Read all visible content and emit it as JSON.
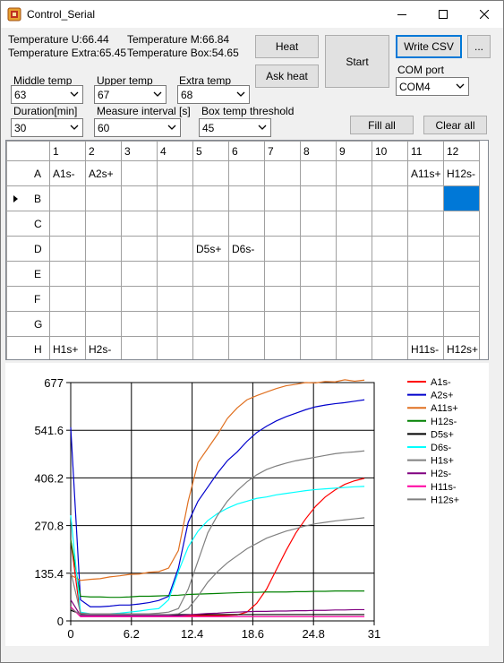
{
  "window": {
    "title": "Control_Serial"
  },
  "status": {
    "temp_u": "Temperature U:66.44",
    "temp_extra": "Temperature Extra:65.45",
    "temp_m": "Temperature M:66.84",
    "temp_box": "Temperature Box:54.65"
  },
  "buttons": {
    "heat": "Heat",
    "ask_heat": "Ask heat",
    "start": "Start",
    "write_csv": "Write CSV",
    "browse": "...",
    "fill_all": "Fill all",
    "clear_all": "Clear all"
  },
  "settings": {
    "middle_temp": {
      "label": "Middle temp",
      "value": "63"
    },
    "upper_temp": {
      "label": "Upper temp",
      "value": "67"
    },
    "extra_temp": {
      "label": "Extra temp",
      "value": "68"
    },
    "duration": {
      "label": "Duration[min]",
      "value": "30"
    },
    "measure_interval": {
      "label": "Measure interval [s]",
      "value": "60"
    },
    "box_temp_threshold": {
      "label": "Box temp threshold",
      "value": "45"
    },
    "com_port": {
      "label": "COM port",
      "value": "COM4"
    }
  },
  "plate": {
    "columns": [
      "1",
      "2",
      "3",
      "4",
      "5",
      "6",
      "7",
      "8",
      "9",
      "10",
      "11",
      "12"
    ],
    "rows": [
      {
        "label": "A",
        "cells": [
          "A1s-",
          "A2s+",
          "",
          "",
          "",
          "",
          "",
          "",
          "",
          "",
          "A11s+",
          "H12s-"
        ]
      },
      {
        "label": "B",
        "cells": [
          "",
          "",
          "",
          "",
          "",
          "",
          "",
          "",
          "",
          "",
          "",
          ""
        ]
      },
      {
        "label": "C",
        "cells": [
          "",
          "",
          "",
          "",
          "",
          "",
          "",
          "",
          "",
          "",
          "",
          ""
        ]
      },
      {
        "label": "D",
        "cells": [
          "",
          "",
          "",
          "",
          "D5s+",
          "D6s-",
          "",
          "",
          "",
          "",
          "",
          ""
        ]
      },
      {
        "label": "E",
        "cells": [
          "",
          "",
          "",
          "",
          "",
          "",
          "",
          "",
          "",
          "",
          "",
          ""
        ]
      },
      {
        "label": "F",
        "cells": [
          "",
          "",
          "",
          "",
          "",
          "",
          "",
          "",
          "",
          "",
          "",
          ""
        ]
      },
      {
        "label": "G",
        "cells": [
          "",
          "",
          "",
          "",
          "",
          "",
          "",
          "",
          "",
          "",
          "",
          ""
        ]
      },
      {
        "label": "H",
        "cells": [
          "H1s+",
          "H2s-",
          "",
          "",
          "",
          "",
          "",
          "",
          "",
          "",
          "H11s-",
          "H12s+"
        ]
      }
    ],
    "selected_row": 1,
    "selected_col": 11,
    "selected_color": "#0078d7"
  },
  "chart_data": {
    "type": "line",
    "xlim": [
      0,
      31
    ],
    "ylim": [
      0,
      677
    ],
    "xticks": [
      "0",
      "6.2",
      "12.4",
      "18.6",
      "24.8",
      "31"
    ],
    "yticks": [
      "0",
      "135.4",
      "270.8",
      "406.2",
      "541.6",
      "677"
    ],
    "grid": true,
    "legend_position": "right",
    "x": [
      0,
      1,
      2,
      3,
      4,
      5,
      6,
      7,
      8,
      9,
      10,
      11,
      12,
      13,
      14,
      15,
      16,
      17,
      18,
      19,
      20,
      21,
      22,
      23,
      24,
      25,
      26,
      27,
      28,
      29,
      30
    ],
    "series": [
      {
        "name": "A1s-",
        "color": "#ff0000",
        "values": [
          230,
          15,
          15,
          15,
          15,
          15,
          15,
          15,
          15,
          15,
          15,
          15,
          15,
          15,
          15,
          15,
          16,
          17,
          25,
          50,
          90,
          145,
          200,
          250,
          290,
          325,
          352,
          372,
          388,
          398,
          405
        ]
      },
      {
        "name": "A2s+",
        "color": "#0000cc",
        "values": [
          550,
          60,
          40,
          40,
          42,
          45,
          45,
          48,
          52,
          58,
          70,
          150,
          280,
          340,
          380,
          420,
          455,
          480,
          510,
          535,
          553,
          568,
          580,
          590,
          600,
          608,
          613,
          617,
          620,
          624,
          628
        ]
      },
      {
        "name": "A11s+",
        "color": "#e07020",
        "values": [
          130,
          115,
          118,
          120,
          125,
          128,
          132,
          133,
          138,
          140,
          150,
          200,
          340,
          450,
          490,
          530,
          575,
          605,
          628,
          640,
          650,
          660,
          668,
          672,
          677,
          676,
          680,
          679,
          685,
          681,
          684
        ]
      },
      {
        "name": "H12s-",
        "color": "#008000",
        "values": [
          230,
          70,
          68,
          68,
          67,
          67,
          68,
          70,
          70,
          71,
          72,
          73,
          75,
          76,
          77,
          78,
          79,
          80,
          81,
          81,
          82,
          82,
          82,
          83,
          83,
          84,
          84,
          85,
          85,
          85,
          85
        ]
      },
      {
        "name": "D5s+",
        "color": "#000000",
        "values": [
          30,
          20,
          18,
          18,
          18,
          18,
          18,
          18,
          18,
          18,
          18,
          18,
          18,
          18,
          18,
          18,
          18,
          18,
          18,
          18,
          18,
          18,
          18,
          18,
          18,
          18,
          18,
          18,
          18,
          18,
          18
        ]
      },
      {
        "name": "D6s-",
        "color": "#00ffff",
        "values": [
          300,
          25,
          20,
          20,
          20,
          22,
          25,
          28,
          32,
          35,
          60,
          140,
          210,
          255,
          285,
          305,
          320,
          332,
          340,
          348,
          352,
          358,
          362,
          366,
          370,
          373,
          375,
          377,
          379,
          381,
          382
        ]
      },
      {
        "name": "H1s+",
        "color": "#808080",
        "values": [
          140,
          22,
          20,
          20,
          20,
          20,
          20,
          20,
          20,
          22,
          25,
          35,
          90,
          170,
          250,
          300,
          340,
          370,
          395,
          415,
          430,
          440,
          448,
          455,
          460,
          465,
          470,
          475,
          478,
          480,
          483
        ]
      },
      {
        "name": "H2s-",
        "color": "#800080",
        "values": [
          60,
          15,
          15,
          15,
          15,
          15,
          15,
          15,
          15,
          15,
          15,
          15,
          17,
          19,
          21,
          22,
          24,
          25,
          26,
          27,
          27,
          28,
          28,
          29,
          29,
          30,
          30,
          31,
          31,
          32,
          32
        ]
      },
      {
        "name": "H11s-",
        "color": "#ff00a0",
        "values": [
          40,
          12,
          12,
          12,
          12,
          12,
          12,
          12,
          12,
          12,
          12,
          12,
          12,
          12,
          12,
          12,
          12,
          12,
          12,
          12,
          12,
          12,
          12,
          12,
          12,
          12,
          12,
          12,
          12,
          12,
          12
        ]
      },
      {
        "name": "H12s+",
        "color": "#808080",
        "values": [
          35,
          18,
          18,
          18,
          18,
          18,
          18,
          18,
          18,
          18,
          18,
          20,
          35,
          70,
          110,
          140,
          165,
          185,
          205,
          220,
          235,
          245,
          255,
          262,
          270,
          276,
          280,
          284,
          287,
          290,
          293
        ]
      }
    ]
  }
}
